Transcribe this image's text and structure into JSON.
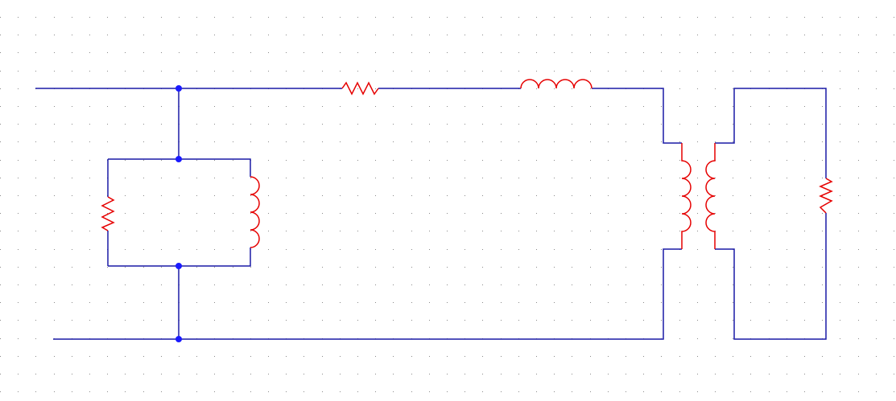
{
  "canvas": {
    "background": "#ffffff",
    "grid_dot_color": "#8a8a8a",
    "grid_visible": true
  },
  "colors": {
    "wire": "#1a1aa6",
    "component": "#e60000",
    "junction": "#1a1aff"
  },
  "components": [
    {
      "name": "series-resistor",
      "kind": "resistor"
    },
    {
      "name": "series-inductor",
      "kind": "inductor"
    },
    {
      "name": "shunt-resistor",
      "kind": "resistor"
    },
    {
      "name": "shunt-inductor",
      "kind": "inductor"
    },
    {
      "name": "transformer-primary-coil",
      "kind": "inductor"
    },
    {
      "name": "transformer-secondary-coil",
      "kind": "inductor"
    },
    {
      "name": "load-resistor",
      "kind": "resistor"
    }
  ],
  "junction_count": 4
}
